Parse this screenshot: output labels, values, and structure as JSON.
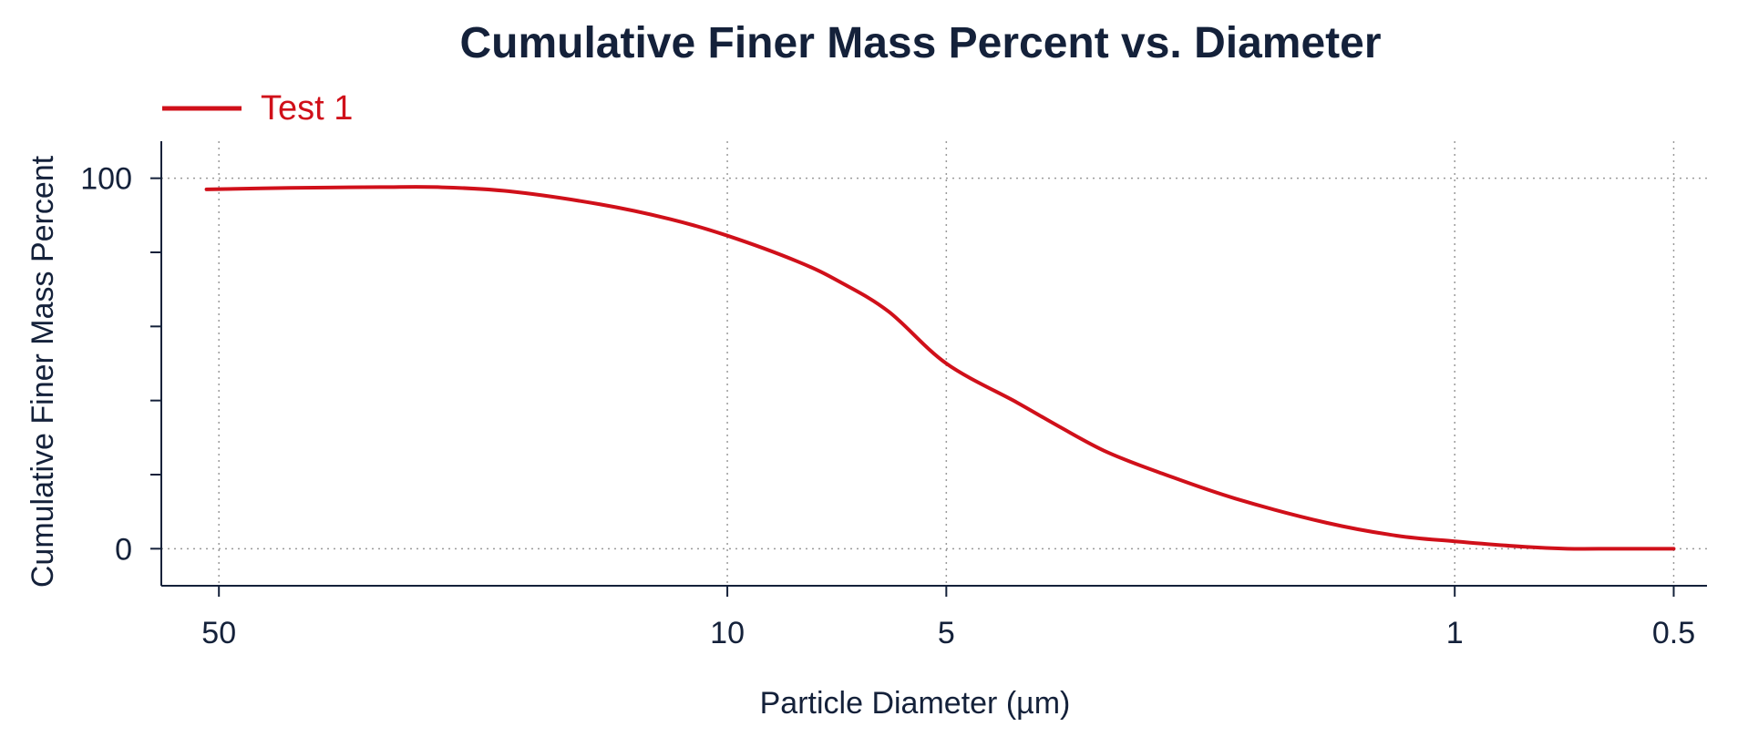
{
  "chart_data": {
    "type": "line",
    "title": "Cumulative Finer Mass Percent vs. Diameter",
    "xlabel": "Particle Diameter (µm)",
    "ylabel": "Cumulative Finer Mass Percent",
    "x_scale": "log",
    "x_reversed": true,
    "xlim": [
      60,
      0.45
    ],
    "ylim": [
      -10,
      110
    ],
    "x_ticks": [
      50,
      10,
      5,
      1,
      0.5
    ],
    "x_tick_labels": [
      "50",
      "10",
      "5",
      "1",
      "0.5"
    ],
    "y_ticks": [
      0,
      100
    ],
    "y_tick_labels": [
      "0",
      "100"
    ],
    "y_minor_ticks": [
      20,
      40,
      60,
      80
    ],
    "grid": true,
    "legend_position": "top-left",
    "series": [
      {
        "name": "Test 1",
        "color": "#d0101a",
        "x": [
          52,
          40,
          30,
          25,
          20,
          15,
          12,
          10,
          8,
          7,
          6,
          5,
          4,
          3.5,
          3,
          2.5,
          2,
          1.5,
          1.2,
          1,
          0.8,
          0.7,
          0.6,
          0.5
        ],
        "y": [
          97,
          97.4,
          97.6,
          97.6,
          96.5,
          93,
          89,
          84.5,
          77.5,
          72,
          64,
          50,
          39.5,
          33,
          26,
          20,
          13.5,
          7,
          3.5,
          2,
          0.5,
          0,
          0,
          0
        ]
      }
    ]
  }
}
